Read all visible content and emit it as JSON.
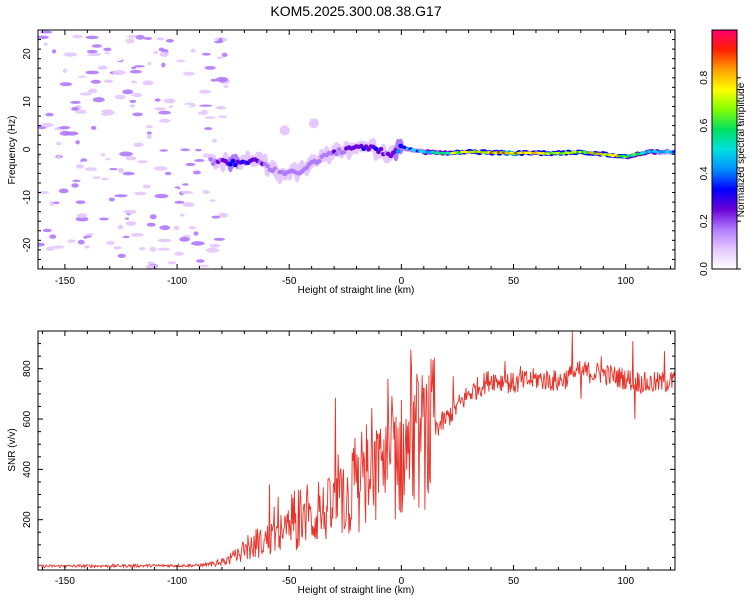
{
  "title": "KOM5.2025.300.08.38.G17",
  "chart_data": [
    {
      "type": "heatmap",
      "name": "spectrogram",
      "xlabel": "Height of straight line (km)",
      "ylabel": "Frequency (Hz)",
      "xlim": [
        -162,
        122
      ],
      "ylim": [
        -25,
        25
      ],
      "xticks": [
        -150,
        -100,
        -50,
        0,
        50,
        100
      ],
      "yticks": [
        -20,
        -10,
        0,
        10,
        20
      ],
      "colorbar": {
        "label": "Normalized spectral amplitude",
        "range": [
          0,
          1
        ],
        "ticks": [
          "0.0",
          "0.2",
          "0.4",
          "0.6",
          "0.8"
        ],
        "tick_values": [
          0.0,
          0.2,
          0.4,
          0.6,
          0.8
        ],
        "colormap": [
          "#ffffff",
          "#e4c8ff",
          "#b07aff",
          "#6a00d8",
          "#0000ff",
          "#0090ff",
          "#00e0e0",
          "#00e060",
          "#80ff00",
          "#ffff00",
          "#ffa000",
          "#ff2000",
          "#ff0070"
        ]
      },
      "signal_track": {
        "x": [
          -85,
          -75,
          -65,
          -55,
          -45,
          -35,
          -25,
          -15,
          -5,
          0,
          10,
          20,
          30,
          40,
          50,
          60,
          70,
          80,
          90,
          100,
          110,
          120
        ],
        "frequency": [
          -2.5,
          -2.8,
          -2,
          -5,
          -4.5,
          -1.5,
          0,
          0.5,
          -1,
          0.5,
          -0.5,
          -0.8,
          -0.5,
          -0.6,
          -0.8,
          -0.7,
          -0.8,
          -0.5,
          -1,
          -1.5,
          -0.5,
          -0.5
        ],
        "amplitude": [
          0.2,
          0.4,
          0.3,
          0.2,
          0.25,
          0.2,
          0.3,
          0.35,
          0.3,
          0.5,
          0.55,
          0.7,
          0.85,
          0.9,
          0.95,
          0.85,
          0.8,
          0.8,
          0.9,
          0.75,
          0.6,
          0.5
        ]
      },
      "isolated_blobs": [
        {
          "x": -52,
          "frequency": 4,
          "amplitude": 0.1
        },
        {
          "x": -39,
          "frequency": 5.5,
          "amplitude": 0.12
        }
      ],
      "noise": {
        "x_range": [
          -162,
          -78
        ],
        "frequency_range": [
          -25,
          25
        ],
        "amplitude_max": 0.18
      }
    },
    {
      "type": "line",
      "name": "snr",
      "xlabel": "Height of straight line (km)",
      "ylabel": "SNR (v/v)",
      "xlim": [
        -162,
        122
      ],
      "ylim": [
        0,
        950
      ],
      "xticks": [
        -150,
        -100,
        -50,
        0,
        50,
        100
      ],
      "yticks": [
        200,
        400,
        600,
        800
      ],
      "color": "#e8332a",
      "envelope": {
        "x": [
          -162,
          -90,
          -80,
          -70,
          -60,
          -50,
          -40,
          -30,
          -20,
          -10,
          0,
          10,
          20,
          30,
          40,
          50,
          60,
          70,
          80,
          90,
          100,
          110,
          122
        ],
        "y": [
          15,
          18,
          30,
          70,
          120,
          160,
          200,
          250,
          300,
          380,
          450,
          520,
          600,
          700,
          760,
          740,
          760,
          750,
          790,
          780,
          760,
          740,
          750
        ]
      },
      "spikes": [
        {
          "x": -71.5,
          "y": 60
        },
        {
          "x": -67,
          "y": 130
        },
        {
          "x": -59,
          "y": 340
        },
        {
          "x": -55,
          "y": 290
        },
        {
          "x": -45,
          "y": 320
        },
        {
          "x": -42,
          "y": 340
        },
        {
          "x": -37,
          "y": 350
        },
        {
          "x": -32,
          "y": 350
        },
        {
          "x": -29.5,
          "y": 685
        },
        {
          "x": -26,
          "y": 400
        },
        {
          "x": -20,
          "y": 460
        },
        {
          "x": -17,
          "y": 470
        },
        {
          "x": -8,
          "y": 520
        },
        {
          "x": -3,
          "y": 590
        },
        {
          "x": 10,
          "y": 720
        },
        {
          "x": 23,
          "y": 770
        },
        {
          "x": 46,
          "y": 830
        },
        {
          "x": 53,
          "y": 810
        },
        {
          "x": 76,
          "y": 950
        },
        {
          "x": 80,
          "y": 680
        },
        {
          "x": 89,
          "y": 850
        },
        {
          "x": 103,
          "y": 910
        },
        {
          "x": 104,
          "y": 600
        },
        {
          "x": 117,
          "y": 870
        }
      ]
    }
  ]
}
